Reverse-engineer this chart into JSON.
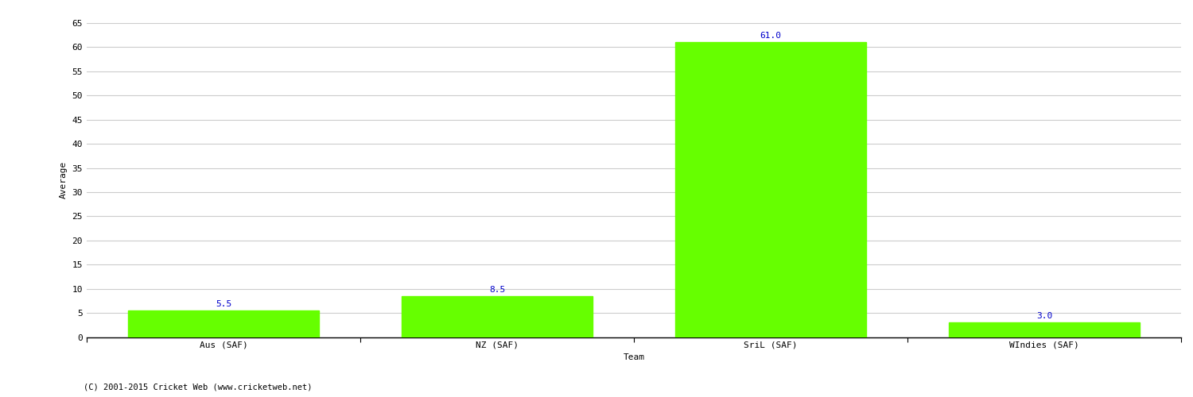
{
  "categories": [
    "Aus (SAF)",
    "NZ (SAF)",
    "SriL (SAF)",
    "WIndies (SAF)"
  ],
  "values": [
    5.5,
    8.5,
    61.0,
    3.0
  ],
  "bar_color": "#66ff00",
  "bar_edge_color": "#66ff00",
  "label_color": "#0000cc",
  "xlabel": "Team",
  "ylabel": "Average",
  "ylim": [
    0,
    65
  ],
  "yticks": [
    0,
    5,
    10,
    15,
    20,
    25,
    30,
    35,
    40,
    45,
    50,
    55,
    60,
    65
  ],
  "grid_color": "#cccccc",
  "background_color": "#ffffff",
  "footer": "(C) 2001-2015 Cricket Web (www.cricketweb.net)",
  "label_fontsize": 8,
  "axis_fontsize": 8,
  "title_fontsize": 11,
  "bar_width": 0.7
}
